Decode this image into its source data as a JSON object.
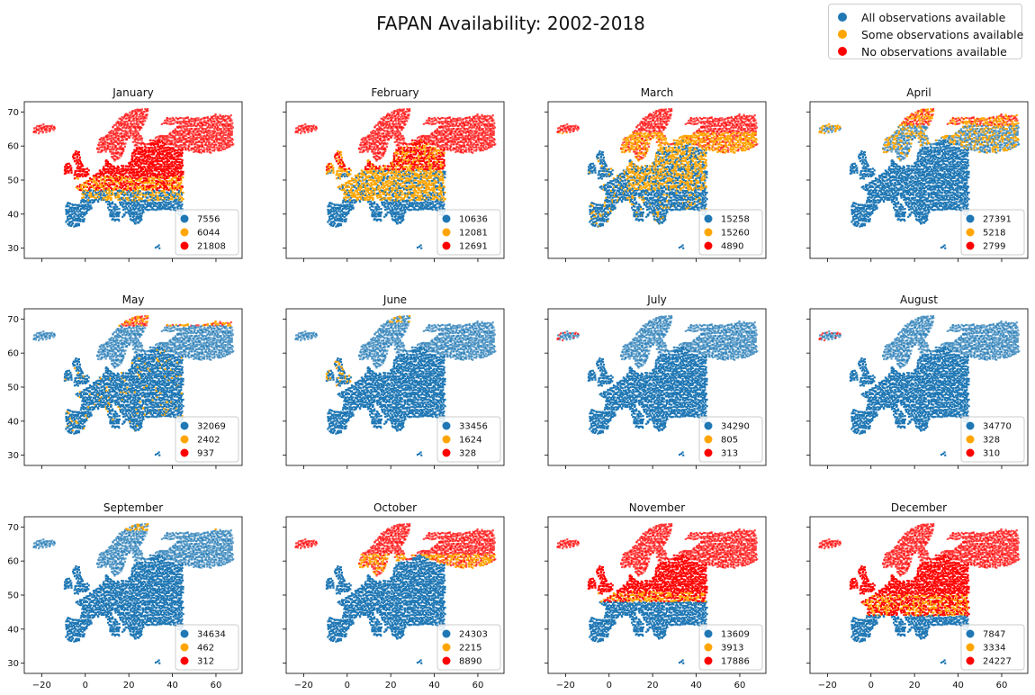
{
  "figure_title": "FAPAN Availability: 2002-2018",
  "legend": {
    "entries": [
      {
        "label": "All observations available",
        "color": "#1f77b4"
      },
      {
        "label": "Some observations available",
        "color": "#ffa500"
      },
      {
        "label": "No observations available",
        "color": "#ff0000"
      }
    ],
    "placement": "top-right"
  },
  "colors": {
    "all": "#1f77b4",
    "some": "#ffa500",
    "none": "#ff0000"
  },
  "chart_data": [
    {
      "type": "scatter",
      "title": "January",
      "xlim": [
        -28,
        72
      ],
      "ylim": [
        27,
        73
      ],
      "xticks": [
        -20,
        0,
        20,
        40,
        60
      ],
      "yticks": [
        30,
        40,
        50,
        60,
        70
      ],
      "counts": {
        "all": 7556,
        "some": 6044,
        "none": 21808
      },
      "legend_labels": [
        "7556",
        "6044",
        "21808"
      ]
    },
    {
      "type": "scatter",
      "title": "February",
      "xlim": [
        -28,
        72
      ],
      "ylim": [
        27,
        73
      ],
      "xticks": [
        -20,
        0,
        20,
        40,
        60
      ],
      "yticks": [
        30,
        40,
        50,
        60,
        70
      ],
      "counts": {
        "all": 10636,
        "some": 12081,
        "none": 12691
      },
      "legend_labels": [
        "10636",
        "12081",
        "12691"
      ]
    },
    {
      "type": "scatter",
      "title": "March",
      "xlim": [
        -28,
        72
      ],
      "ylim": [
        27,
        73
      ],
      "xticks": [
        -20,
        0,
        20,
        40,
        60
      ],
      "yticks": [
        30,
        40,
        50,
        60,
        70
      ],
      "counts": {
        "all": 15258,
        "some": 15260,
        "none": 4890
      },
      "legend_labels": [
        "15258",
        "15260",
        "4890"
      ]
    },
    {
      "type": "scatter",
      "title": "April",
      "xlim": [
        -28,
        72
      ],
      "ylim": [
        27,
        73
      ],
      "xticks": [
        -20,
        0,
        20,
        40,
        60
      ],
      "yticks": [
        30,
        40,
        50,
        60,
        70
      ],
      "counts": {
        "all": 27391,
        "some": 5218,
        "none": 2799
      },
      "legend_labels": [
        "27391",
        "5218",
        "2799"
      ]
    },
    {
      "type": "scatter",
      "title": "May",
      "xlim": [
        -28,
        72
      ],
      "ylim": [
        27,
        73
      ],
      "xticks": [
        -20,
        0,
        20,
        40,
        60
      ],
      "yticks": [
        30,
        40,
        50,
        60,
        70
      ],
      "counts": {
        "all": 32069,
        "some": 2402,
        "none": 937
      },
      "legend_labels": [
        "32069",
        "2402",
        "937"
      ]
    },
    {
      "type": "scatter",
      "title": "June",
      "xlim": [
        -28,
        72
      ],
      "ylim": [
        27,
        73
      ],
      "xticks": [
        -20,
        0,
        20,
        40,
        60
      ],
      "yticks": [
        30,
        40,
        50,
        60,
        70
      ],
      "counts": {
        "all": 33456,
        "some": 1624,
        "none": 328
      },
      "legend_labels": [
        "33456",
        "1624",
        "328"
      ]
    },
    {
      "type": "scatter",
      "title": "July",
      "xlim": [
        -28,
        72
      ],
      "ylim": [
        27,
        73
      ],
      "xticks": [
        -20,
        0,
        20,
        40,
        60
      ],
      "yticks": [
        30,
        40,
        50,
        60,
        70
      ],
      "counts": {
        "all": 34290,
        "some": 805,
        "none": 313
      },
      "legend_labels": [
        "34290",
        "805",
        "313"
      ]
    },
    {
      "type": "scatter",
      "title": "August",
      "xlim": [
        -28,
        72
      ],
      "ylim": [
        27,
        73
      ],
      "xticks": [
        -20,
        0,
        20,
        40,
        60
      ],
      "yticks": [
        30,
        40,
        50,
        60,
        70
      ],
      "counts": {
        "all": 34770,
        "some": 328,
        "none": 310
      },
      "legend_labels": [
        "34770",
        "328",
        "310"
      ]
    },
    {
      "type": "scatter",
      "title": "September",
      "xlim": [
        -28,
        72
      ],
      "ylim": [
        27,
        73
      ],
      "xticks": [
        -20,
        0,
        20,
        40,
        60
      ],
      "yticks": [
        30,
        40,
        50,
        60,
        70
      ],
      "counts": {
        "all": 34634,
        "some": 462,
        "none": 312
      },
      "legend_labels": [
        "34634",
        "462",
        "312"
      ]
    },
    {
      "type": "scatter",
      "title": "October",
      "xlim": [
        -28,
        72
      ],
      "ylim": [
        27,
        73
      ],
      "xticks": [
        -20,
        0,
        20,
        40,
        60
      ],
      "yticks": [
        30,
        40,
        50,
        60,
        70
      ],
      "counts": {
        "all": 24303,
        "some": 2215,
        "none": 8890
      },
      "legend_labels": [
        "24303",
        "2215",
        "8890"
      ]
    },
    {
      "type": "scatter",
      "title": "November",
      "xlim": [
        -28,
        72
      ],
      "ylim": [
        27,
        73
      ],
      "xticks": [
        -20,
        0,
        20,
        40,
        60
      ],
      "yticks": [
        30,
        40,
        50,
        60,
        70
      ],
      "counts": {
        "all": 13609,
        "some": 3913,
        "none": 17886
      },
      "legend_labels": [
        "13609",
        "3913",
        "17886"
      ]
    },
    {
      "type": "scatter",
      "title": "December",
      "xlim": [
        -28,
        72
      ],
      "ylim": [
        27,
        73
      ],
      "xticks": [
        -20,
        0,
        20,
        40,
        60
      ],
      "yticks": [
        30,
        40,
        50,
        60,
        70
      ],
      "counts": {
        "all": 7847,
        "some": 3334,
        "none": 24227
      },
      "legend_labels": [
        "7847",
        "3334",
        "24227"
      ]
    }
  ]
}
